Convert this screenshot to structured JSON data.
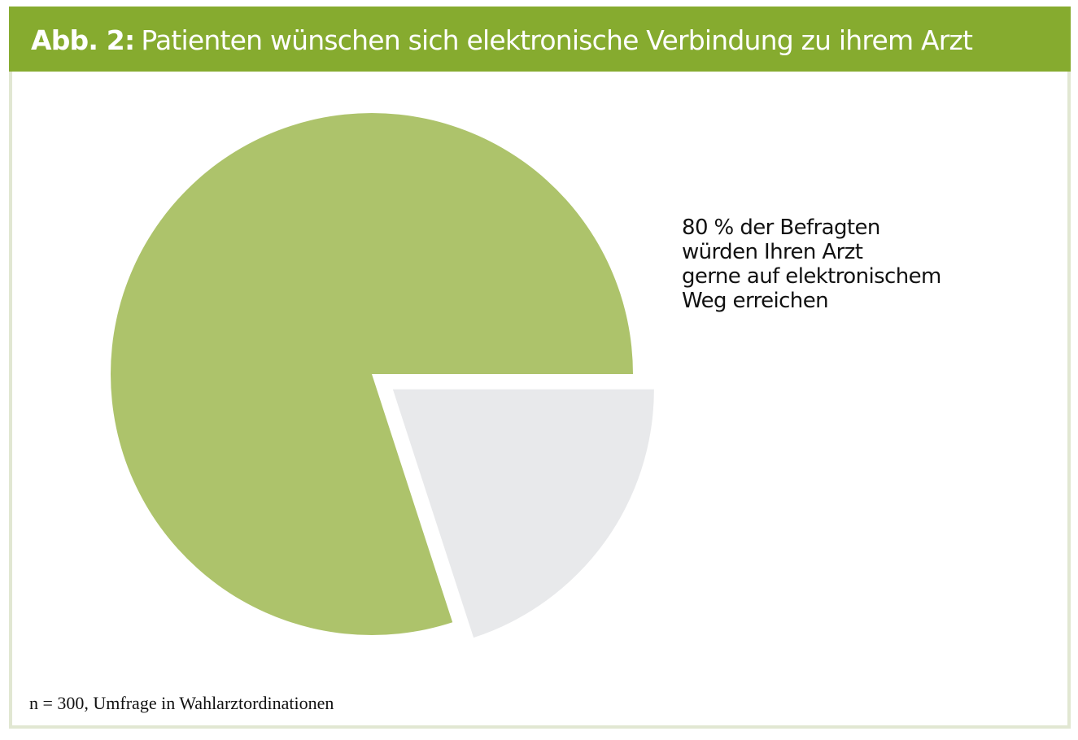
{
  "chart_data": {
    "type": "pie",
    "title_prefix": "Abb. 2:",
    "title": "Patienten wünschen sich elektronische Verbindung zu ihrem Arzt",
    "slices": [
      {
        "value": 80,
        "color": "#adc36b",
        "exploded": false
      },
      {
        "value": 20,
        "color": "#e8e9eb",
        "exploded": true
      }
    ],
    "annotation": [
      "80 % der Befragten",
      "würden Ihren Arzt",
      "gerne auf elektronischem",
      "Weg erreichen"
    ],
    "footnote": "n = 300, Umfrage in Wahlarztordinationen"
  },
  "colors": {
    "header": "#86ab2f",
    "frame": "#e1e7d2"
  }
}
